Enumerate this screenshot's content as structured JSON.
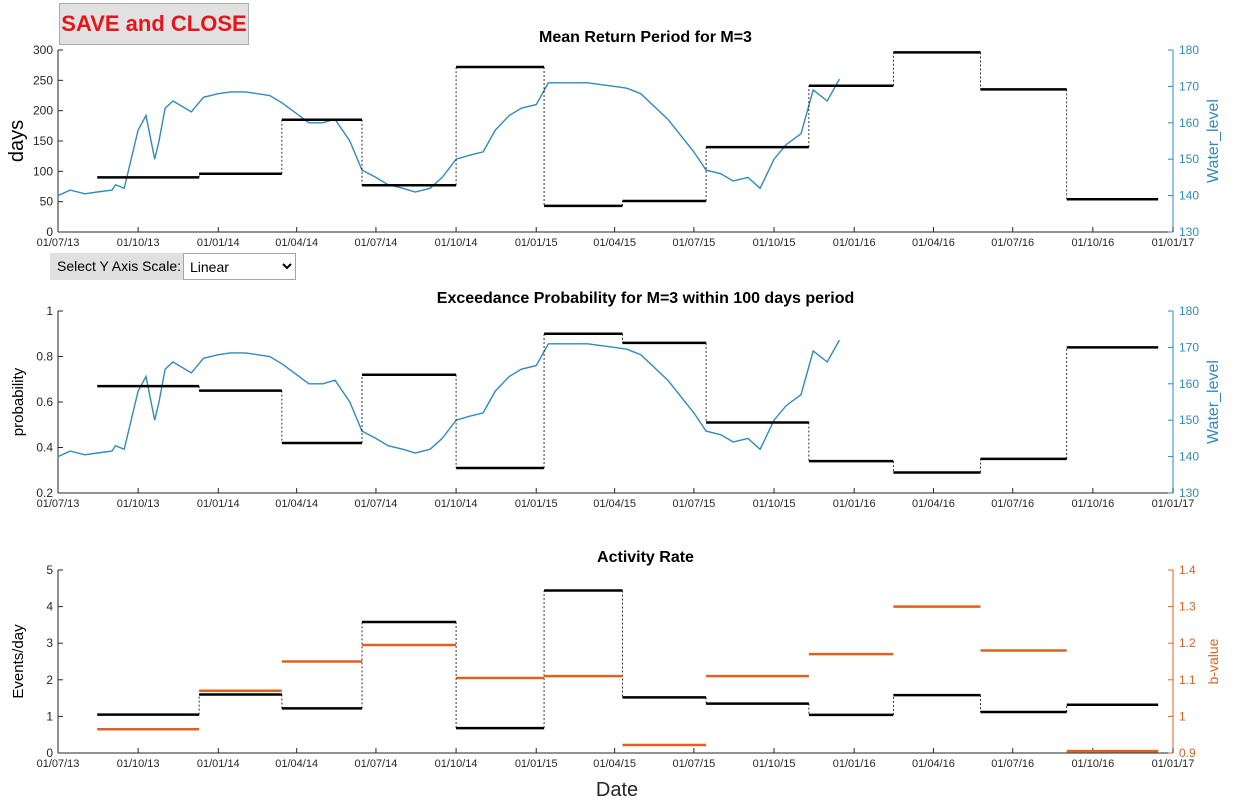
{
  "controls": {
    "save_close_label": "SAVE and CLOSE",
    "scale_label": "Select Y Axis Scale:",
    "scale_value": "Linear",
    "scale_options": [
      "Linear"
    ]
  },
  "colors": {
    "step": "#000000",
    "water": "#2e8bc0",
    "bvalue": "#e0601f",
    "axis": "#262626"
  },
  "x_ticks": [
    "01/07/13",
    "01/10/13",
    "01/01/14",
    "01/04/14",
    "01/07/14",
    "01/10/14",
    "01/01/15",
    "01/04/15",
    "01/07/15",
    "01/10/15",
    "01/01/16",
    "01/04/16",
    "01/07/16",
    "01/10/16",
    "01/01/17"
  ],
  "chart_data": [
    {
      "type": "line",
      "title": "Mean Return Period for M=3",
      "xlabel": "",
      "ylabel": "days",
      "y2label": "Water_level",
      "xlim": [
        "01/07/13",
        "01/01/17"
      ],
      "ylim": [
        0,
        300
      ],
      "y2lim": [
        130,
        180
      ],
      "yticks": [
        0,
        50,
        100,
        150,
        200,
        250,
        300
      ],
      "y2ticks": [
        130,
        140,
        150,
        160,
        170,
        180
      ],
      "step_series": [
        {
          "start": "15/08/13",
          "end": "10/12/13",
          "value": 90
        },
        {
          "start": "10/12/13",
          "end": "15/03/14",
          "value": 96
        },
        {
          "start": "15/03/14",
          "end": "15/06/14",
          "value": 185
        },
        {
          "start": "15/06/14",
          "end": "01/10/14",
          "value": 77
        },
        {
          "start": "01/10/14",
          "end": "10/01/15",
          "value": 272
        },
        {
          "start": "10/01/15",
          "end": "10/04/15",
          "value": 43
        },
        {
          "start": "10/04/15",
          "end": "15/07/15",
          "value": 51
        },
        {
          "start": "15/07/15",
          "end": "10/11/15",
          "value": 140
        },
        {
          "start": "10/11/15",
          "end": "15/02/16",
          "value": 241
        },
        {
          "start": "15/02/16",
          "end": "25/05/16",
          "value": 296
        },
        {
          "start": "25/05/16",
          "end": "01/09/16",
          "value": 235
        },
        {
          "start": "01/09/16",
          "end": "15/12/16",
          "value": 54
        }
      ],
      "water_series": {
        "x": [
          "01/07/13",
          "15/07/13",
          "01/08/13",
          "15/08/13",
          "01/09/13",
          "05/09/13",
          "15/09/13",
          "01/10/13",
          "10/10/13",
          "20/10/13",
          "25/10/13",
          "01/11/13",
          "10/11/13",
          "01/12/13",
          "15/12/13",
          "01/01/14",
          "15/01/14",
          "01/02/14",
          "01/03/14",
          "15/03/14",
          "01/04/14",
          "15/04/14",
          "01/05/14",
          "15/05/14",
          "01/06/14",
          "15/06/14",
          "01/07/14",
          "15/07/14",
          "01/08/14",
          "15/08/14",
          "01/09/14",
          "15/09/14",
          "01/10/14",
          "15/10/14",
          "01/11/14",
          "15/11/14",
          "01/12/14",
          "15/12/14",
          "01/01/15",
          "15/01/15",
          "01/02/15",
          "01/03/15",
          "01/04/15",
          "15/04/15",
          "01/05/15",
          "01/06/15",
          "01/07/15",
          "15/07/15",
          "01/08/15",
          "15/08/15",
          "01/09/15",
          "15/09/15",
          "01/10/15",
          "15/10/15",
          "01/11/15",
          "15/11/15",
          "01/12/15",
          "15/12/15"
        ],
        "y": [
          140,
          141.5,
          140.5,
          141,
          141.5,
          143,
          142,
          158,
          162,
          150,
          155,
          164,
          166,
          163,
          167,
          168,
          168.5,
          168.5,
          167.5,
          165.5,
          162.5,
          160,
          160,
          161,
          155,
          147,
          145,
          143,
          142,
          141,
          142,
          145,
          150,
          151,
          152,
          158,
          162,
          164,
          165,
          171,
          171,
          171,
          170,
          169.5,
          168,
          161,
          152,
          147,
          146,
          144,
          145,
          142,
          150,
          154,
          157,
          169,
          166,
          172
        ]
      }
    },
    {
      "type": "line",
      "title": "Exceedance Probability for M=3 within 100 days period",
      "xlabel": "",
      "ylabel": "probability",
      "y2label": "Water_level",
      "xlim": [
        "01/07/13",
        "01/01/17"
      ],
      "ylim": [
        0.2,
        1
      ],
      "y2lim": [
        130,
        180
      ],
      "yticks": [
        0.2,
        0.4,
        0.6,
        0.8,
        1
      ],
      "y2ticks": [
        130,
        140,
        150,
        160,
        170,
        180
      ],
      "step_series": [
        {
          "start": "15/08/13",
          "end": "10/12/13",
          "value": 0.67
        },
        {
          "start": "10/12/13",
          "end": "15/03/14",
          "value": 0.65
        },
        {
          "start": "15/03/14",
          "end": "15/06/14",
          "value": 0.42
        },
        {
          "start": "15/06/14",
          "end": "01/10/14",
          "value": 0.72
        },
        {
          "start": "01/10/14",
          "end": "10/01/15",
          "value": 0.31
        },
        {
          "start": "10/01/15",
          "end": "10/04/15",
          "value": 0.9
        },
        {
          "start": "10/04/15",
          "end": "15/07/15",
          "value": 0.86
        },
        {
          "start": "15/07/15",
          "end": "10/11/15",
          "value": 0.51
        },
        {
          "start": "10/11/15",
          "end": "15/02/16",
          "value": 0.34
        },
        {
          "start": "15/02/16",
          "end": "25/05/16",
          "value": 0.29
        },
        {
          "start": "25/05/16",
          "end": "01/09/16",
          "value": 0.35
        },
        {
          "start": "01/09/16",
          "end": "15/12/16",
          "value": 0.84
        }
      ],
      "water_series": {
        "x": [
          "01/07/13",
          "15/07/13",
          "01/08/13",
          "15/08/13",
          "01/09/13",
          "05/09/13",
          "15/09/13",
          "01/10/13",
          "10/10/13",
          "20/10/13",
          "25/10/13",
          "01/11/13",
          "10/11/13",
          "01/12/13",
          "15/12/13",
          "01/01/14",
          "15/01/14",
          "01/02/14",
          "01/03/14",
          "15/03/14",
          "01/04/14",
          "15/04/14",
          "01/05/14",
          "15/05/14",
          "01/06/14",
          "15/06/14",
          "01/07/14",
          "15/07/14",
          "01/08/14",
          "15/08/14",
          "01/09/14",
          "15/09/14",
          "01/10/14",
          "15/10/14",
          "01/11/14",
          "15/11/14",
          "01/12/14",
          "15/12/14",
          "01/01/15",
          "15/01/15",
          "01/02/15",
          "01/03/15",
          "01/04/15",
          "15/04/15",
          "01/05/15",
          "01/06/15",
          "01/07/15",
          "15/07/15",
          "01/08/15",
          "15/08/15",
          "01/09/15",
          "15/09/15",
          "01/10/15",
          "15/10/15",
          "01/11/15",
          "15/11/15",
          "01/12/15",
          "15/12/15"
        ],
        "y": [
          140,
          141.5,
          140.5,
          141,
          141.5,
          143,
          142,
          158,
          162,
          150,
          155,
          164,
          166,
          163,
          167,
          168,
          168.5,
          168.5,
          167.5,
          165.5,
          162.5,
          160,
          160,
          161,
          155,
          147,
          145,
          143,
          142,
          141,
          142,
          145,
          150,
          151,
          152,
          158,
          162,
          164,
          165,
          171,
          171,
          171,
          170,
          169.5,
          168,
          161,
          152,
          147,
          146,
          144,
          145,
          142,
          150,
          154,
          157,
          169,
          166,
          172
        ]
      }
    },
    {
      "type": "line",
      "title": "Activity Rate",
      "xlabel": "Date",
      "ylabel": "Events/day",
      "y2label": "b-value",
      "xlim": [
        "01/07/13",
        "01/01/17"
      ],
      "ylim": [
        0,
        5
      ],
      "y2lim": [
        0.9,
        1.4
      ],
      "yticks": [
        0,
        1,
        2,
        3,
        4,
        5
      ],
      "y2ticks": [
        0.9,
        1,
        1.1,
        1.2,
        1.3,
        1.4
      ],
      "step_series": [
        {
          "start": "15/08/13",
          "end": "10/12/13",
          "value": 1.05
        },
        {
          "start": "10/12/13",
          "end": "15/03/14",
          "value": 1.6
        },
        {
          "start": "15/03/14",
          "end": "15/06/14",
          "value": 1.22
        },
        {
          "start": "15/06/14",
          "end": "01/10/14",
          "value": 3.58
        },
        {
          "start": "01/10/14",
          "end": "10/01/15",
          "value": 0.68
        },
        {
          "start": "10/01/15",
          "end": "10/04/15",
          "value": 4.44
        },
        {
          "start": "10/04/15",
          "end": "15/07/15",
          "value": 1.52
        },
        {
          "start": "15/07/15",
          "end": "10/11/15",
          "value": 1.35
        },
        {
          "start": "10/11/15",
          "end": "15/02/16",
          "value": 1.04
        },
        {
          "start": "15/02/16",
          "end": "25/05/16",
          "value": 1.58
        },
        {
          "start": "25/05/16",
          "end": "01/09/16",
          "value": 1.12
        },
        {
          "start": "01/09/16",
          "end": "15/12/16",
          "value": 1.32
        }
      ],
      "bvalue_series": [
        {
          "start": "15/08/13",
          "end": "10/12/13",
          "value": 0.965
        },
        {
          "start": "10/12/13",
          "end": "15/03/14",
          "value": 1.07
        },
        {
          "start": "15/03/14",
          "end": "15/06/14",
          "value": 1.15
        },
        {
          "start": "15/06/14",
          "end": "01/10/14",
          "value": 1.195
        },
        {
          "start": "01/10/14",
          "end": "10/01/15",
          "value": 1.105
        },
        {
          "start": "10/01/15",
          "end": "10/04/15",
          "value": 1.11
        },
        {
          "start": "10/04/15",
          "end": "15/07/15",
          "value": 0.922
        },
        {
          "start": "15/07/15",
          "end": "10/11/15",
          "value": 1.11
        },
        {
          "start": "10/11/15",
          "end": "15/02/16",
          "value": 1.17
        },
        {
          "start": "15/02/16",
          "end": "25/05/16",
          "value": 1.3
        },
        {
          "start": "25/05/16",
          "end": "01/09/16",
          "value": 1.18
        },
        {
          "start": "01/09/16",
          "end": "15/12/16",
          "value": 0.905
        }
      ]
    }
  ]
}
